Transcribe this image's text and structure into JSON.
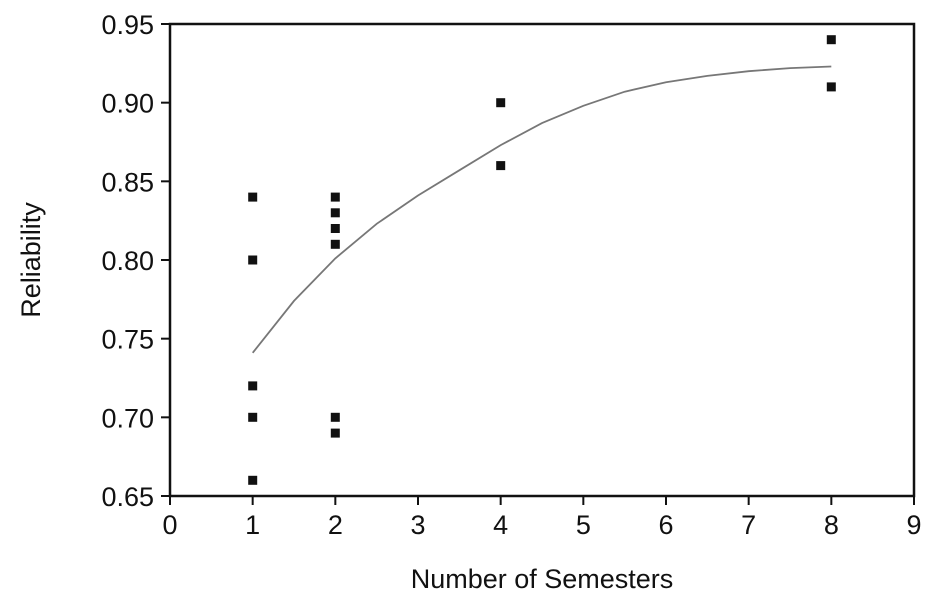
{
  "chart_data": {
    "type": "scatter",
    "title": "",
    "xlabel": "Number of Semesters",
    "ylabel": "Reliability",
    "xlim": [
      0,
      9
    ],
    "ylim": [
      0.65,
      0.95
    ],
    "x_ticks": [
      "0",
      "1",
      "2",
      "3",
      "4",
      "5",
      "6",
      "7",
      "8",
      "9"
    ],
    "y_ticks": [
      "0.65",
      "0.70",
      "0.75",
      "0.80",
      "0.85",
      "0.90",
      "0.95"
    ],
    "grid": false,
    "legend": "none",
    "series": [
      {
        "type": "scatter",
        "marker": "square",
        "color": "#111111",
        "x": [
          1,
          1,
          1,
          1,
          1,
          2,
          2,
          2,
          2,
          2,
          2,
          4,
          4,
          8,
          8
        ],
        "y": [
          0.84,
          0.8,
          0.72,
          0.7,
          0.66,
          0.84,
          0.83,
          0.82,
          0.81,
          0.7,
          0.69,
          0.9,
          0.86,
          0.94,
          0.91
        ]
      },
      {
        "type": "line",
        "color": "#777777",
        "x": [
          1,
          1.5,
          2,
          2.5,
          3,
          3.5,
          4,
          4.5,
          5,
          5.5,
          6,
          6.5,
          7,
          7.5,
          8
        ],
        "y": [
          0.741,
          0.774,
          0.801,
          0.823,
          0.841,
          0.857,
          0.873,
          0.887,
          0.898,
          0.907,
          0.913,
          0.917,
          0.92,
          0.922,
          0.923
        ]
      }
    ]
  }
}
